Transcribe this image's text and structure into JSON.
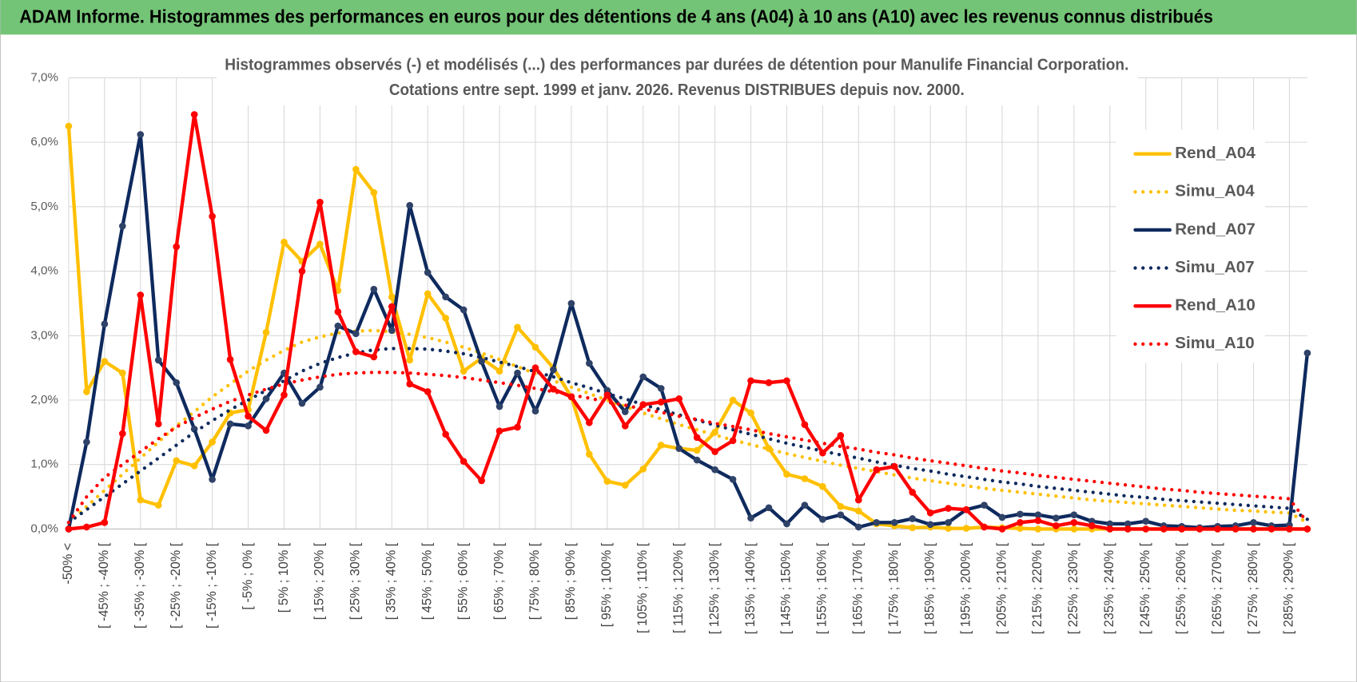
{
  "header": {
    "title": "ADAM Informe. Histogrammes des performances en euros pour des détentions de 4 ans (A04) à 10 ans (A10) avec les revenus connus distribués"
  },
  "chart_data": {
    "type": "line",
    "title": "Histogrammes observés (-) et modélisés (...) des performances par durées de détention pour Manulife Financial Corporation.",
    "subtitle": "Cotations entre sept. 1999 et janv. 2026. Revenus DISTRIBUES depuis nov. 2000.",
    "categories": [
      "-50% <",
      null,
      "[ -45% ; -40% [",
      null,
      "[ -35% ; -30% [",
      null,
      "[ -25% ; -20% [",
      null,
      "[ -15% ; -10% [",
      null,
      "[ -5% ; 0% [",
      null,
      "[ 5% ; 10% [",
      null,
      "[ 15% ; 20% [",
      null,
      "[ 25% ; 30% [",
      null,
      "[ 35% ; 40% [",
      null,
      "[ 45% ; 50% [",
      null,
      "[ 55% ; 60% [",
      null,
      "[ 65% ; 70% [",
      null,
      "[ 75% ; 80% [",
      null,
      "[ 85% ; 90% [",
      null,
      "[ 95% ; 100% [",
      null,
      "[ 105% ; 110% [",
      null,
      "[ 115% ; 120% [",
      null,
      "[ 125% ; 130% [",
      null,
      "[ 135% ; 140% [",
      null,
      "[ 145% ; 150% [",
      null,
      "[ 155% ; 160% [",
      null,
      "[ 165% ; 170% [",
      null,
      "[ 175% ; 180% [",
      null,
      "[ 185% ; 190% [",
      null,
      "[ 195% ; 200% [",
      null,
      "[ 205% ; 210% [",
      null,
      "[ 215% ; 220% [",
      null,
      "[ 225% ; 230% [",
      null,
      "[ 235% ; 240% [",
      null,
      "[ 245% ; 250% [",
      null,
      "[ 255% ; 260% [",
      null,
      "[ 265% ; 270% [",
      null,
      "[ 275% ; 280% [",
      null,
      "[ 285% ; 290% [",
      null
    ],
    "ylim": [
      0,
      7
    ],
    "yticks": [
      {
        "value": 0,
        "label": "0,0%"
      },
      {
        "value": 1,
        "label": "1,0%"
      },
      {
        "value": 2,
        "label": "2,0%"
      },
      {
        "value": 3,
        "label": "3,0%"
      },
      {
        "value": 4,
        "label": "4,0%"
      },
      {
        "value": 5,
        "label": "5,0%"
      },
      {
        "value": 6,
        "label": "6,0%"
      },
      {
        "value": 7,
        "label": "7,0%"
      }
    ],
    "grid": true,
    "legend": "right",
    "series": [
      {
        "name": "Rend_A04",
        "color": "#ffc000",
        "line_style": "solid",
        "values": [
          6.25,
          2.13,
          2.6,
          2.42,
          0.45,
          0.37,
          1.06,
          0.98,
          1.35,
          1.8,
          1.85,
          3.05,
          4.45,
          4.15,
          4.42,
          3.7,
          5.58,
          5.22,
          3.6,
          2.62,
          3.65,
          3.27,
          2.45,
          2.65,
          2.45,
          3.13,
          2.82,
          2.5,
          2.05,
          1.16,
          0.74,
          0.68,
          0.93,
          1.3,
          1.25,
          1.22,
          1.5,
          2.0,
          1.8,
          1.25,
          0.85,
          0.78,
          0.66,
          0.35,
          0.28,
          0.08,
          0.05,
          0.02,
          0.03,
          0.01,
          0.01,
          0.03,
          0.02,
          0.01,
          0,
          0,
          0,
          0,
          0,
          0,
          0,
          0,
          0,
          0,
          0,
          0,
          0,
          0,
          0,
          0
        ]
      },
      {
        "name": "Simu_A04",
        "color": "#ffc000",
        "line_style": "dotted",
        "values": [
          0.1,
          0.35,
          0.6,
          0.85,
          1.1,
          1.35,
          1.6,
          1.82,
          2.05,
          2.25,
          2.45,
          2.62,
          2.77,
          2.9,
          2.98,
          3.04,
          3.07,
          3.08,
          3.06,
          3.02,
          2.97,
          2.9,
          2.82,
          2.73,
          2.63,
          2.52,
          2.41,
          2.3,
          2.2,
          2.1,
          2.0,
          1.9,
          1.8,
          1.71,
          1.62,
          1.54,
          1.46,
          1.38,
          1.31,
          1.24,
          1.17,
          1.11,
          1.05,
          0.99,
          0.94,
          0.89,
          0.84,
          0.79,
          0.75,
          0.71,
          0.67,
          0.63,
          0.6,
          0.57,
          0.54,
          0.51,
          0.48,
          0.45,
          0.43,
          0.41,
          0.39,
          0.37,
          0.35,
          0.33,
          0.31,
          0.29,
          0.28,
          0.26,
          0.25,
          0.1
        ]
      },
      {
        "name": "Rend_A07",
        "color": "#0e2a5e",
        "line_style": "solid",
        "values": [
          0,
          1.35,
          3.18,
          4.7,
          6.12,
          2.62,
          2.27,
          1.55,
          0.77,
          1.63,
          1.6,
          2.02,
          2.42,
          1.95,
          2.2,
          3.15,
          3.03,
          3.72,
          3.08,
          5.02,
          3.98,
          3.6,
          3.4,
          2.6,
          1.9,
          2.42,
          1.83,
          2.47,
          3.5,
          2.57,
          2.15,
          1.82,
          2.36,
          2.18,
          1.25,
          1.07,
          0.92,
          0.77,
          0.17,
          0.33,
          0.08,
          0.37,
          0.15,
          0.22,
          0.03,
          0.1,
          0.1,
          0.16,
          0.07,
          0.1,
          0.3,
          0.37,
          0.18,
          0.23,
          0.22,
          0.17,
          0.22,
          0.12,
          0.08,
          0.08,
          0.12,
          0.05,
          0.04,
          0.02,
          0.04,
          0.05,
          0.1,
          0.05,
          0.06,
          2.73
        ]
      },
      {
        "name": "Simu_A07",
        "color": "#0e2a5e",
        "line_style": "dotted",
        "values": [
          0.1,
          0.3,
          0.5,
          0.7,
          0.9,
          1.1,
          1.3,
          1.5,
          1.68,
          1.85,
          2.0,
          2.15,
          2.3,
          2.45,
          2.57,
          2.66,
          2.73,
          2.78,
          2.8,
          2.8,
          2.79,
          2.76,
          2.72,
          2.66,
          2.59,
          2.52,
          2.44,
          2.36,
          2.27,
          2.19,
          2.1,
          2.02,
          1.93,
          1.85,
          1.77,
          1.69,
          1.61,
          1.54,
          1.47,
          1.4,
          1.33,
          1.27,
          1.21,
          1.15,
          1.1,
          1.04,
          0.99,
          0.94,
          0.9,
          0.85,
          0.81,
          0.77,
          0.73,
          0.7,
          0.66,
          0.63,
          0.6,
          0.57,
          0.54,
          0.51,
          0.49,
          0.46,
          0.44,
          0.42,
          0.4,
          0.38,
          0.36,
          0.34,
          0.32,
          0.15
        ]
      },
      {
        "name": "Rend_A10",
        "color": "#ff0000",
        "line_style": "solid",
        "values": [
          0,
          0.03,
          0.1,
          1.48,
          3.63,
          1.63,
          4.38,
          6.43,
          4.85,
          2.63,
          1.75,
          1.53,
          2.08,
          4.0,
          5.07,
          3.37,
          2.75,
          2.67,
          3.45,
          2.25,
          2.13,
          1.47,
          1.05,
          0.75,
          1.52,
          1.58,
          2.5,
          2.17,
          2.05,
          1.65,
          2.08,
          1.6,
          1.93,
          1.97,
          2.02,
          1.42,
          1.2,
          1.37,
          2.3,
          2.27,
          2.3,
          1.62,
          1.18,
          1.45,
          0.45,
          0.92,
          0.97,
          0.57,
          0.25,
          0.32,
          0.3,
          0.03,
          0,
          0.1,
          0.13,
          0.05,
          0.1,
          0.05,
          0,
          0,
          0,
          0,
          0,
          0,
          0,
          0,
          0,
          0,
          0,
          0
        ]
      },
      {
        "name": "Simu_A10",
        "color": "#ff0000",
        "line_style": "dotted",
        "values": [
          0.1,
          0.5,
          0.8,
          1.0,
          1.2,
          1.4,
          1.58,
          1.73,
          1.86,
          1.98,
          2.08,
          2.17,
          2.25,
          2.31,
          2.36,
          2.4,
          2.42,
          2.43,
          2.43,
          2.42,
          2.4,
          2.38,
          2.35,
          2.31,
          2.27,
          2.23,
          2.18,
          2.13,
          2.08,
          2.03,
          1.97,
          1.92,
          1.86,
          1.81,
          1.75,
          1.7,
          1.64,
          1.59,
          1.54,
          1.48,
          1.43,
          1.38,
          1.33,
          1.28,
          1.24,
          1.19,
          1.15,
          1.1,
          1.06,
          1.02,
          0.98,
          0.94,
          0.9,
          0.87,
          0.83,
          0.8,
          0.77,
          0.74,
          0.71,
          0.68,
          0.65,
          0.62,
          0.6,
          0.57,
          0.55,
          0.53,
          0.51,
          0.49,
          0.47,
          0.1
        ]
      }
    ]
  }
}
